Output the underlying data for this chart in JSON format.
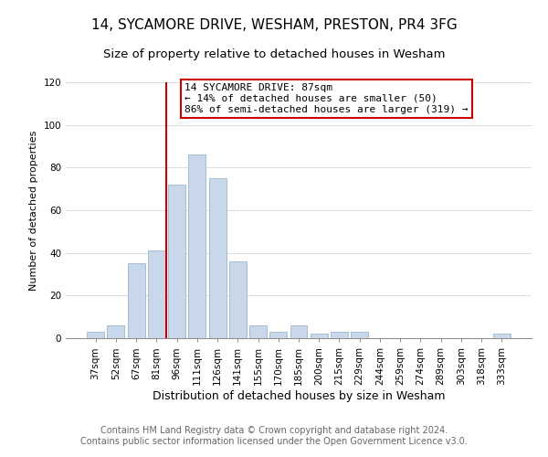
{
  "title": "14, SYCAMORE DRIVE, WESHAM, PRESTON, PR4 3FG",
  "subtitle": "Size of property relative to detached houses in Wesham",
  "xlabel": "Distribution of detached houses by size in Wesham",
  "ylabel": "Number of detached properties",
  "bar_labels": [
    "37sqm",
    "52sqm",
    "67sqm",
    "81sqm",
    "96sqm",
    "111sqm",
    "126sqm",
    "141sqm",
    "155sqm",
    "170sqm",
    "185sqm",
    "200sqm",
    "215sqm",
    "229sqm",
    "244sqm",
    "259sqm",
    "274sqm",
    "289sqm",
    "303sqm",
    "318sqm",
    "333sqm"
  ],
  "bar_values": [
    3,
    6,
    35,
    41,
    72,
    86,
    75,
    36,
    6,
    3,
    6,
    2,
    3,
    3,
    0,
    0,
    0,
    0,
    0,
    0,
    2
  ],
  "bar_color": "#c8d8ea",
  "bar_edge_color": "#9ab8cc",
  "vline_color": "#cc0000",
  "vline_x": 3.5,
  "ylim": [
    0,
    120
  ],
  "annotation_title": "14 SYCAMORE DRIVE: 87sqm",
  "annotation_line1": "← 14% of detached houses are smaller (50)",
  "annotation_line2": "86% of semi-detached houses are larger (319) →",
  "annotation_box_edge": "#cc0000",
  "footer_line1": "Contains HM Land Registry data © Crown copyright and database right 2024.",
  "footer_line2": "Contains public sector information licensed under the Open Government Licence v3.0.",
  "title_fontsize": 11,
  "subtitle_fontsize": 9.5,
  "xlabel_fontsize": 9,
  "ylabel_fontsize": 8,
  "tick_fontsize": 7.5,
  "annotation_fontsize": 8,
  "footer_fontsize": 7,
  "grid_color": "#d4dde6"
}
